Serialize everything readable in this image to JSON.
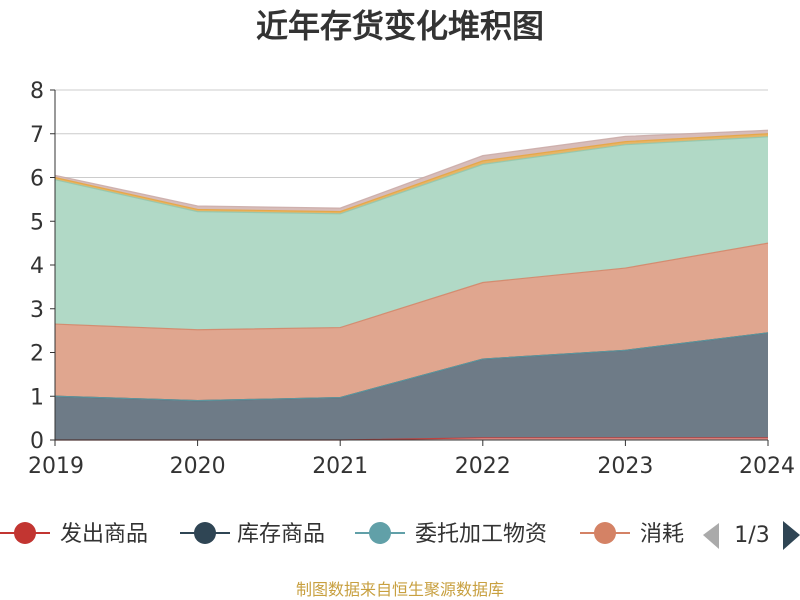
{
  "chart_data": {
    "type": "area",
    "stacked": true,
    "title": "近年存货变化堆积图",
    "x": [
      "2019",
      "2020",
      "2021",
      "2022",
      "2023",
      "2024"
    ],
    "ylim": [
      0,
      8
    ],
    "yticks": [
      0,
      1,
      2,
      3,
      4,
      5,
      6,
      7,
      8
    ],
    "grid": true,
    "series": [
      {
        "name": "发出商品",
        "color": "#c23531",
        "fill": "#e6a09c",
        "values": [
          0.0,
          0.0,
          0.0,
          0.05,
          0.05,
          0.05
        ]
      },
      {
        "name": "库存商品",
        "color": "#2f4554",
        "fill": "#6e7b87",
        "values": [
          1.0,
          0.9,
          0.97,
          1.8,
          2.0,
          2.4
        ]
      },
      {
        "name": "委托加工物资",
        "color": "#61a0a8",
        "fill": "#b1d9c6",
        "values": [
          0.0,
          0.0,
          0.0,
          0.0,
          0.0,
          0.0
        ]
      },
      {
        "name": "消耗",
        "color": "#d48265",
        "fill": "#e0a68f",
        "values": [
          1.65,
          1.62,
          1.6,
          1.75,
          1.88,
          2.05
        ]
      },
      {
        "name": "",
        "color": "#91c7ae",
        "fill": "#b1d9c6",
        "values": [
          3.3,
          2.7,
          2.6,
          2.7,
          2.82,
          2.43
        ]
      },
      {
        "name": "",
        "color": "#e6a33c",
        "fill": "#e6b566",
        "values": [
          0.05,
          0.05,
          0.05,
          0.08,
          0.07,
          0.07
        ]
      },
      {
        "name": "",
        "color": "#c9a9a6",
        "fill": "#d7bcb9",
        "values": [
          0.05,
          0.08,
          0.08,
          0.12,
          0.12,
          0.08
        ]
      }
    ],
    "legend": {
      "position": "bottom",
      "visible_items": [
        "发出商品",
        "库存商品",
        "委托加工物资",
        "消耗"
      ],
      "visible_last_label": "消耗",
      "page_label": "1/3"
    },
    "source_note": "制图数据来自恒生聚源数据库"
  }
}
